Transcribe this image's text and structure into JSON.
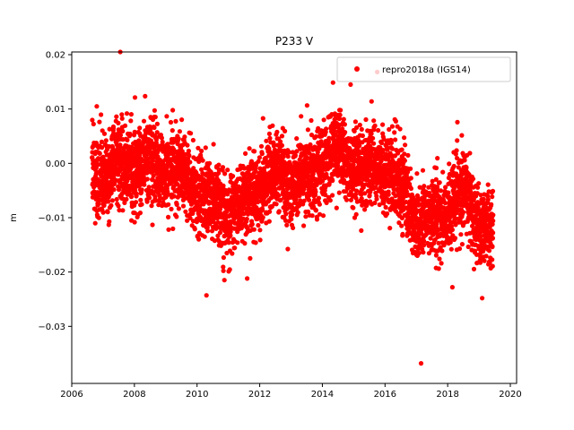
{
  "chart_data": {
    "type": "scatter",
    "title": "P233 V",
    "xlabel": "",
    "ylabel": "m",
    "xlim": [
      2006.0,
      2020.2
    ],
    "ylim": [
      -0.0405,
      0.0205
    ],
    "xticks": [
      2006,
      2008,
      2010,
      2012,
      2014,
      2016,
      2018,
      2020
    ],
    "xtick_labels": [
      "2006",
      "2008",
      "2010",
      "2012",
      "2014",
      "2016",
      "2018",
      "2020"
    ],
    "yticks": [
      0.02,
      0.01,
      0.0,
      -0.01,
      -0.02,
      -0.03
    ],
    "ytick_labels": [
      "0.02",
      "0.01",
      "0.00",
      "−0.01",
      "−0.02",
      "−0.03"
    ],
    "grid": false,
    "legend": {
      "placement": "top-right",
      "entries": [
        "repro2018a (IGS14)"
      ]
    },
    "series": [
      {
        "name": "repro2018a (IGS14)",
        "color": "#ff0000",
        "marker": "circle",
        "x_range": [
          2006.65,
          2019.45
        ],
        "points_per_year": 365,
        "trend": [
          [
            2006.7,
            -0.002
          ],
          [
            2007.5,
            -0.001
          ],
          [
            2008.5,
            0.0
          ],
          [
            2009.5,
            -0.002
          ],
          [
            2010.3,
            -0.007
          ],
          [
            2011.2,
            -0.009
          ],
          [
            2012.0,
            -0.004
          ],
          [
            2012.7,
            -0.002
          ],
          [
            2013.3,
            -0.004
          ],
          [
            2014.0,
            0.001
          ],
          [
            2014.5,
            0.002
          ],
          [
            2015.2,
            -0.002
          ],
          [
            2015.8,
            0.0
          ],
          [
            2016.5,
            -0.004
          ],
          [
            2017.0,
            -0.01
          ],
          [
            2017.5,
            -0.011
          ],
          [
            2018.0,
            -0.008
          ],
          [
            2018.6,
            -0.006
          ],
          [
            2019.0,
            -0.01
          ],
          [
            2019.45,
            -0.013
          ]
        ],
        "scatter_sd": 0.0036,
        "outliers": [
          [
            2007.55,
            0.0205
          ],
          [
            2017.15,
            -0.0368
          ],
          [
            2010.3,
            -0.0243
          ],
          [
            2015.75,
            0.0168
          ],
          [
            2014.9,
            0.0145
          ],
          [
            2019.1,
            -0.0248
          ],
          [
            2018.15,
            -0.0228
          ],
          [
            2006.8,
            0.0105
          ],
          [
            2011.6,
            -0.0212
          ]
        ]
      }
    ]
  }
}
